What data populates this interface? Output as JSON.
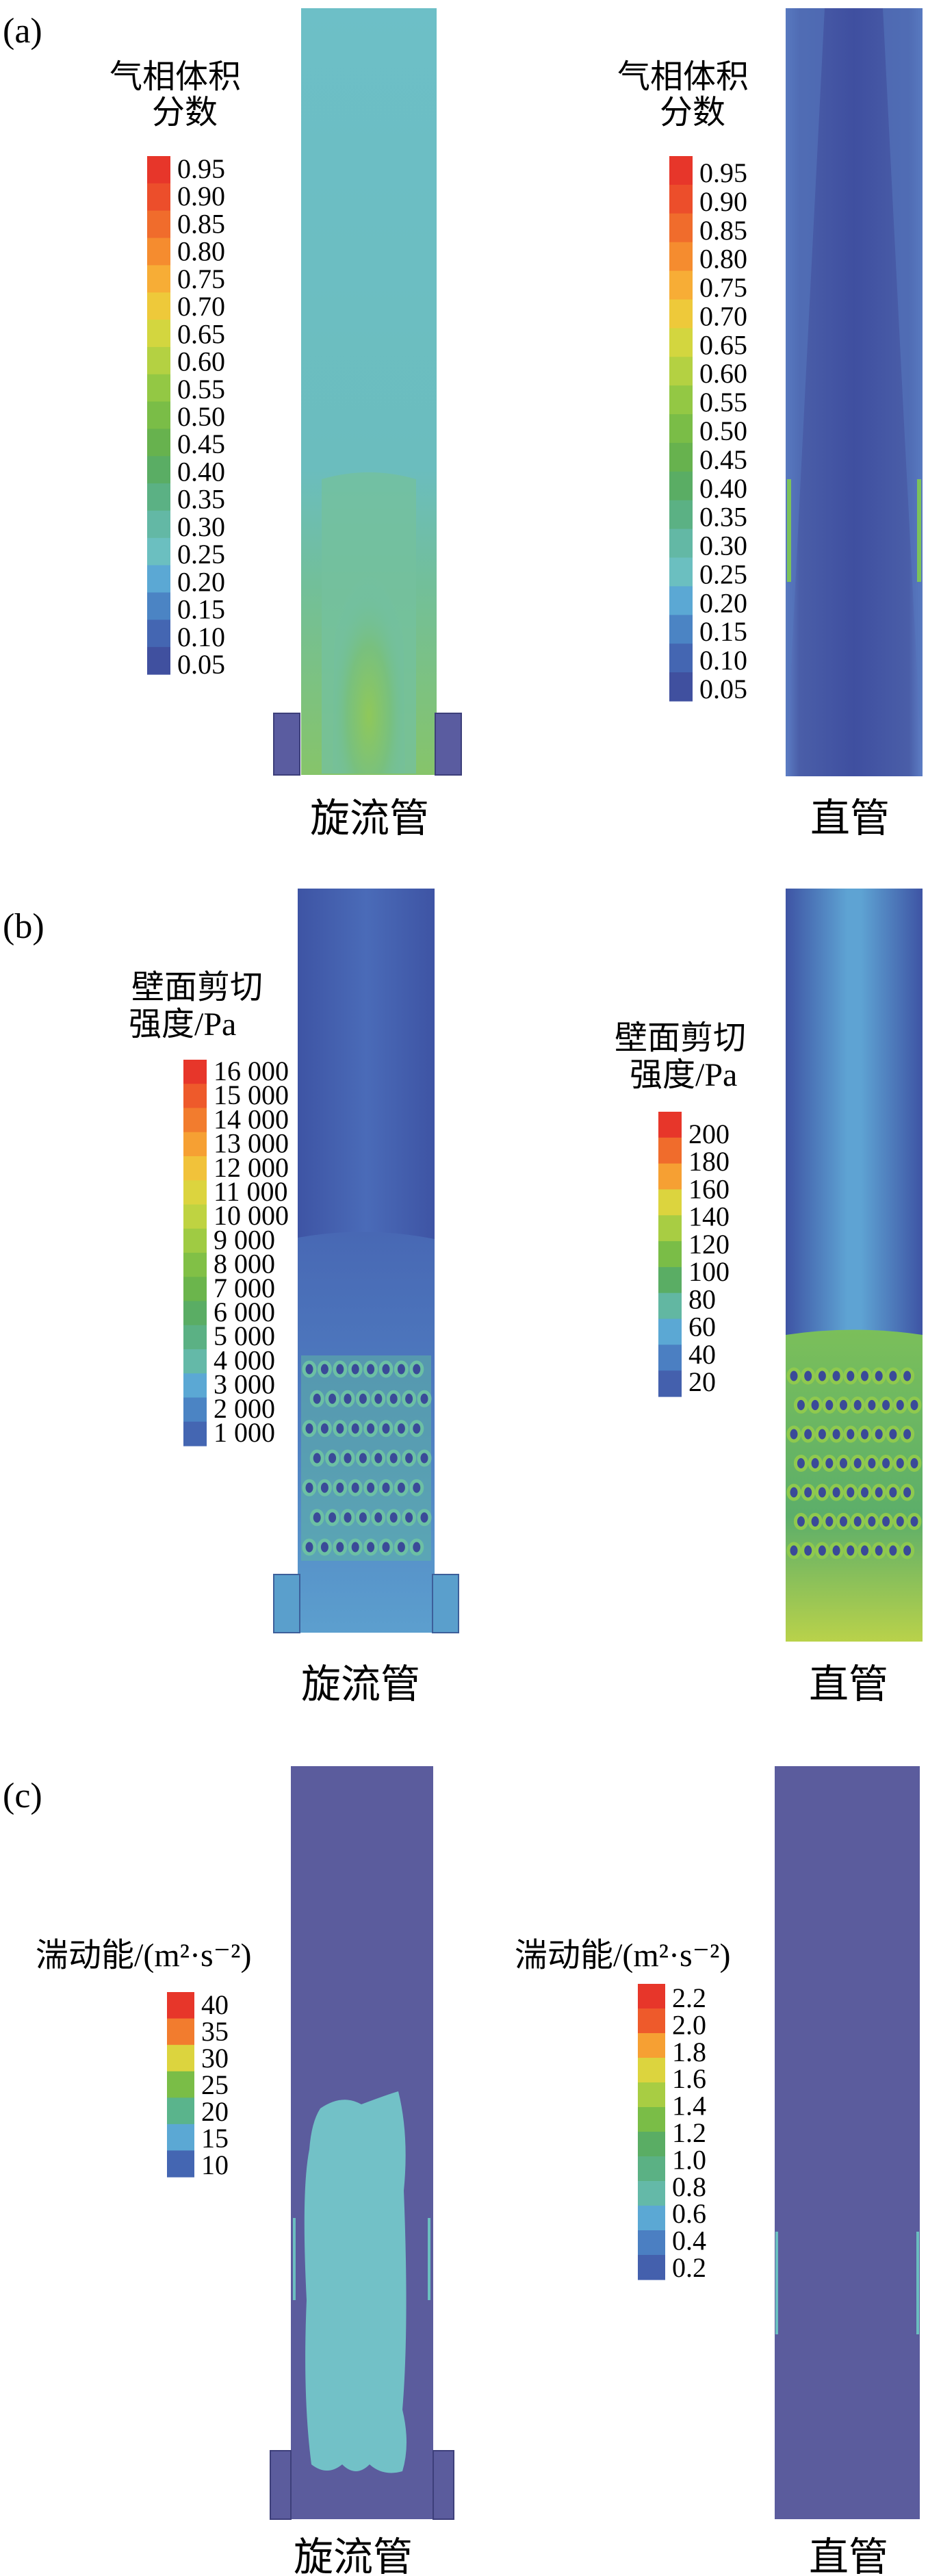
{
  "panels": [
    {
      "label": "(a)",
      "left": {
        "caption": "旋流管",
        "legend": {
          "title_lines": [
            "气相体积",
            "分数"
          ],
          "ticks": [
            "0.95",
            "0.90",
            "0.85",
            "0.80",
            "0.75",
            "0.70",
            "0.65",
            "0.60",
            "0.55",
            "0.50",
            "0.45",
            "0.40",
            "0.35",
            "0.30",
            "0.25",
            "0.20",
            "0.15",
            "0.10",
            "0.05"
          ],
          "colors": [
            "#e7362a",
            "#ec4e2b",
            "#f06c2c",
            "#f58c2f",
            "#f7ad36",
            "#eec93a",
            "#d3d63f",
            "#b4d142",
            "#93c844",
            "#7abd47",
            "#67b24e",
            "#5aad64",
            "#5bb184",
            "#63b8a5",
            "#6bbfc0",
            "#5ba8d4",
            "#4b84c4",
            "#4466b2",
            "#40509f"
          ]
        }
      },
      "right": {
        "caption": "直管",
        "legend": {
          "title_lines": [
            "气相体积",
            "分数"
          ],
          "ticks": [
            "0.95",
            "0.90",
            "0.85",
            "0.80",
            "0.75",
            "0.70",
            "0.65",
            "0.60",
            "0.55",
            "0.50",
            "0.45",
            "0.40",
            "0.35",
            "0.30",
            "0.25",
            "0.20",
            "0.15",
            "0.10",
            "0.05"
          ],
          "colors": [
            "#e7362a",
            "#ec4e2b",
            "#f06c2c",
            "#f58c2f",
            "#f7ad36",
            "#eec93a",
            "#d3d63f",
            "#b4d142",
            "#93c844",
            "#7abd47",
            "#67b24e",
            "#5aad64",
            "#5bb184",
            "#63b8a5",
            "#6bbfc0",
            "#5ba8d4",
            "#4b84c4",
            "#4466b2",
            "#40509f"
          ]
        }
      }
    },
    {
      "label": "(b)",
      "left": {
        "caption": "旋流管",
        "legend": {
          "title_lines": [
            "壁面剪切",
            "强度/Pa"
          ],
          "ticks": [
            "16 000",
            "15 000",
            "14 000",
            "13 000",
            "12 000",
            "11 000",
            "10 000",
            "9 000",
            "8 000",
            "7 000",
            "6 000",
            "5 000",
            "4 000",
            "3 000",
            "2 000",
            "1 000"
          ],
          "colors": [
            "#e7362a",
            "#ee5a2b",
            "#f27c2e",
            "#f6a033",
            "#f1c23a",
            "#dcd43e",
            "#bfd341",
            "#9fcb43",
            "#81c046",
            "#6bb54c",
            "#5aad64",
            "#5bb184",
            "#64b9a8",
            "#5ba8d4",
            "#4b84c4",
            "#4466b2"
          ]
        }
      },
      "right": {
        "caption": "直管",
        "legend": {
          "title_lines": [
            "壁面剪切",
            "强度/Pa"
          ],
          "ticks": [
            "200",
            "180",
            "160",
            "140",
            "120",
            "100",
            "80",
            "60",
            "40",
            "20"
          ],
          "colors": [
            "#e7362a",
            "#f06c2c",
            "#f6a033",
            "#dcd43e",
            "#a8cd43",
            "#7abd47",
            "#5aad64",
            "#62b7a2",
            "#5ba8d4",
            "#4b7fc2",
            "#4460ad"
          ]
        }
      }
    },
    {
      "label": "(c)",
      "left": {
        "caption": "旋流管",
        "legend": {
          "title_lines": [
            "湍动能/(m²·s⁻²)"
          ],
          "ticks": [
            "40",
            "35",
            "30",
            "25",
            "20",
            "15",
            "10"
          ],
          "colors": [
            "#e7362a",
            "#f27c2e",
            "#dcd43e",
            "#7abd47",
            "#5ab48c",
            "#5ba8d4",
            "#4466b2"
          ]
        }
      },
      "right": {
        "caption": "直管",
        "legend": {
          "title_lines": [
            "湍动能/(m²·s⁻²)"
          ],
          "ticks": [
            "2.2",
            "2.0",
            "1.8",
            "1.6",
            "1.4",
            "1.2",
            "1.0",
            "0.8",
            "0.6",
            "0.4",
            "0.2"
          ],
          "colors": [
            "#e7362a",
            "#ee5a2b",
            "#f6a033",
            "#dcd43e",
            "#a8cd43",
            "#7abd47",
            "#5aad64",
            "#5bb184",
            "#64b9a8",
            "#5ba8d4",
            "#4b7fc2",
            "#4460ad"
          ]
        }
      }
    }
  ]
}
